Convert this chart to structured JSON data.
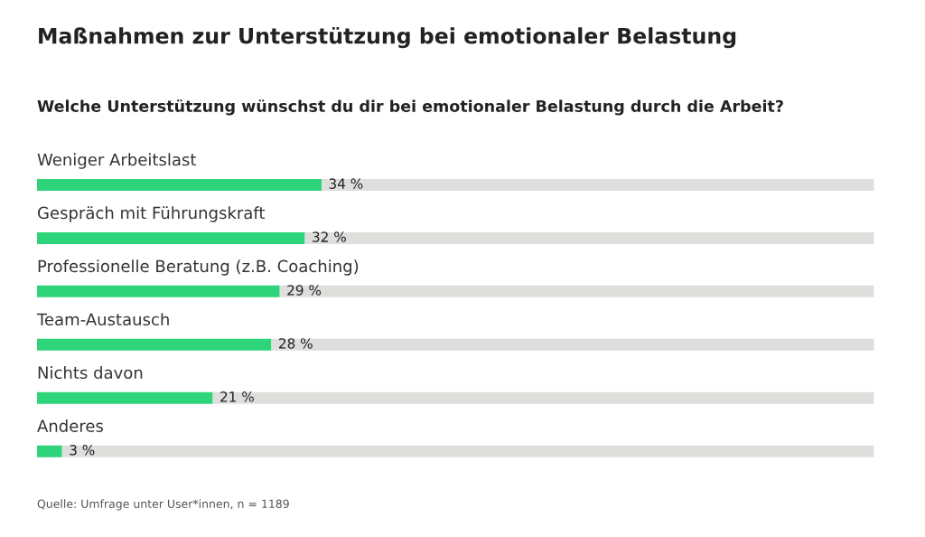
{
  "chart_data": {
    "type": "bar",
    "orientation": "horizontal",
    "stacked": true,
    "title": "Maßnahmen zur Unterstützung bei emotionaler Belastung",
    "subtitle": "Welche Unterstützung wünschst du dir bei emotionaler Belastung durch die Arbeit?",
    "categories": [
      "Weniger Arbeitslast",
      "Gespräch mit Führungskraft",
      "Professionelle Beratung (z.B. Coaching)",
      "Team-Austausch",
      "Nichts davon",
      "Anderes"
    ],
    "series": [
      {
        "color": "#2ed47a",
        "values": [
          34,
          32,
          29,
          28,
          21,
          3
        ],
        "value_labels": [
          "34 %",
          "32 %",
          "29 %",
          "28 %",
          "21 %",
          "3 %"
        ]
      },
      {
        "color": "#dededc",
        "values": [
          66,
          68,
          71,
          72,
          79,
          97
        ]
      }
    ],
    "xlim": [
      0,
      100
    ],
    "tick_labels": false,
    "legend": false,
    "annotations": [
      "Quelle: Umfrage unter User*innen, n = 1189"
    ]
  }
}
